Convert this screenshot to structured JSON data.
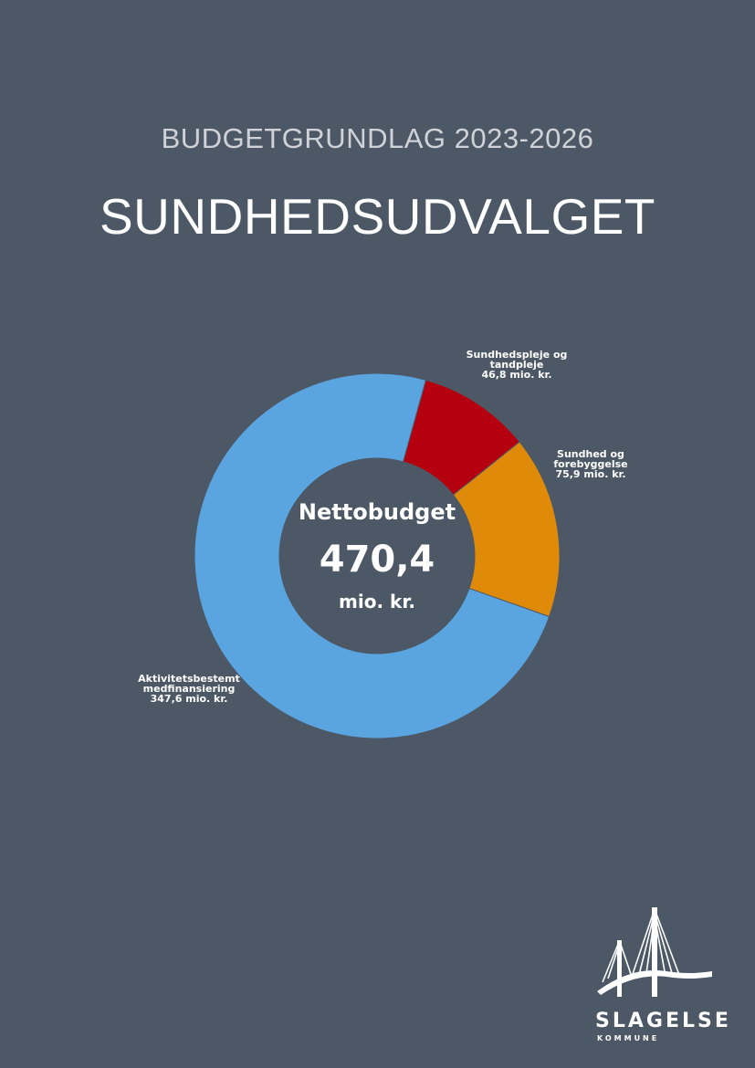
{
  "header": {
    "subtitle": "BUDGETGRUNDLAG 2023-2026",
    "title": "SUNDHEDSUDVALGET"
  },
  "chart_data": {
    "type": "pie",
    "donut": true,
    "center_label": {
      "line1": "Nettobudget",
      "line2": "470,4",
      "line3": "mio. kr."
    },
    "total": 470.4,
    "unit": "mio. kr.",
    "slices": [
      {
        "name_lines": [
          "Sundhedspleje og",
          "tandpleje"
        ],
        "value": 46.8,
        "value_label": "46,8 mio. kr.",
        "color": "#b5000f"
      },
      {
        "name_lines": [
          "Sundhed og",
          "forebyggelse"
        ],
        "value": 75.9,
        "value_label": "75,9 mio. kr.",
        "color": "#e08a0a"
      },
      {
        "name_lines": [
          "Aktivitetsbestemt",
          "medfinansiering"
        ],
        "value": 347.6,
        "value_label": "347,6 mio. kr.",
        "color": "#5aa4e0"
      }
    ]
  },
  "logo": {
    "name": "SLAGELSE",
    "sub": "KOMMUNE"
  }
}
